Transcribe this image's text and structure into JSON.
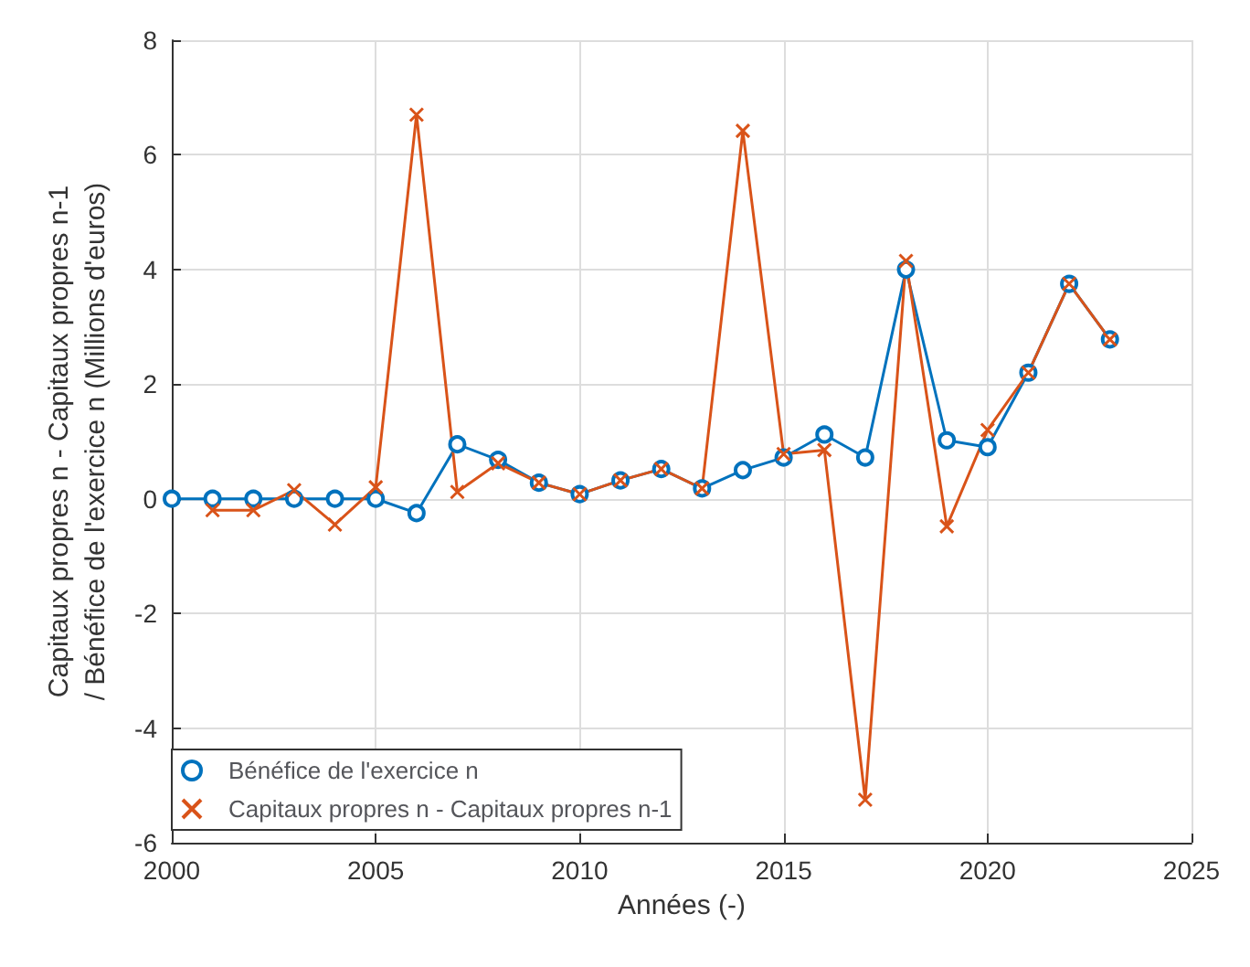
{
  "chart_data": {
    "type": "line",
    "xlabel": "Années (-)",
    "ylabel": "Capitaux propres n - Capitaux propres n-1\n/ Bénéfice de l'exercice n (Millions d'euros)",
    "xlim": [
      2000,
      2025
    ],
    "xticks": [
      2000,
      2005,
      2010,
      2015,
      2020,
      2025
    ],
    "ylim": [
      -6,
      8
    ],
    "yticks": [
      -6,
      -4,
      -2,
      0,
      2,
      4,
      6,
      8
    ],
    "grid": true,
    "legend": "bottom left",
    "series": [
      {
        "name": "Bénéfice de l'exercice n",
        "color": "#0072bd",
        "marker": "circle",
        "x": [
          2000,
          2001,
          2002,
          2003,
          2004,
          2005,
          2006,
          2007,
          2008,
          2009,
          2010,
          2011,
          2012,
          2013,
          2014,
          2015,
          2016,
          2017,
          2018,
          2019,
          2020,
          2021,
          2022,
          2023
        ],
        "values": [
          0,
          0,
          0,
          0,
          0,
          0,
          -0.25,
          0.95,
          0.68,
          0.28,
          0.08,
          0.32,
          0.52,
          0.18,
          0.5,
          0.72,
          1.12,
          0.72,
          4.0,
          1.02,
          0.9,
          2.2,
          3.75,
          2.78
        ]
      },
      {
        "name": "Capitaux propres n - Capitaux propres n-1",
        "color": "#d95319",
        "marker": "cross",
        "x": [
          2001,
          2002,
          2003,
          2004,
          2005,
          2006,
          2007,
          2008,
          2009,
          2010,
          2011,
          2012,
          2013,
          2014,
          2015,
          2016,
          2017,
          2018,
          2019,
          2020,
          2021,
          2022,
          2023
        ],
        "values": [
          -0.2,
          -0.2,
          0.15,
          -0.45,
          0.2,
          6.7,
          0.12,
          0.62,
          0.28,
          0.08,
          0.32,
          0.52,
          0.18,
          6.42,
          0.78,
          0.85,
          -5.25,
          4.15,
          -0.48,
          1.2,
          2.2,
          3.75,
          2.78
        ]
      }
    ]
  }
}
